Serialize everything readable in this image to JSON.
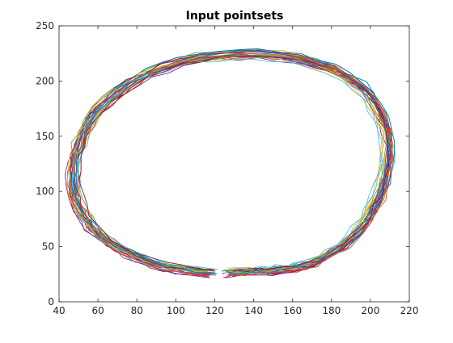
{
  "chart_data": {
    "type": "line",
    "title": "Input pointsets",
    "xlabel": "",
    "ylabel": "",
    "xlim": [
      40,
      220
    ],
    "ylim": [
      0,
      250
    ],
    "x_ticks": [
      "40",
      "60",
      "80",
      "100",
      "120",
      "140",
      "160",
      "180",
      "200",
      "220"
    ],
    "y_ticks": [
      "0",
      "50",
      "100",
      "150",
      "200",
      "250"
    ],
    "grid": false,
    "legend": "none",
    "note_series_unlabeled": true,
    "colors": [
      "#0072BD",
      "#D95319",
      "#EDB120",
      "#7E2F8E",
      "#77AC30",
      "#4DBEEE",
      "#A2142F"
    ],
    "base_curve": {
      "x": [
        118,
        110,
        102,
        95,
        88,
        82,
        76,
        70,
        65,
        60,
        56,
        53,
        50,
        48,
        47,
        47,
        48,
        50,
        52,
        55,
        59,
        64,
        70,
        77,
        85,
        93,
        102,
        112,
        122,
        132,
        142,
        152,
        162,
        171,
        180,
        187,
        194,
        199,
        203,
        206,
        208,
        209,
        209,
        208,
        206,
        204,
        201,
        198,
        194,
        190,
        185,
        180,
        175,
        170,
        165,
        160,
        155,
        150,
        145,
        140,
        135,
        130,
        126
      ],
      "y": [
        27,
        28,
        30,
        32,
        35,
        39,
        44,
        49,
        55,
        62,
        69,
        77,
        86,
        96,
        107,
        118,
        130,
        141,
        152,
        162,
        172,
        181,
        190,
        198,
        206,
        212,
        217,
        221,
        223,
        224,
        224,
        223,
        220,
        216,
        211,
        204,
        196,
        187,
        177,
        166,
        154,
        142,
        130,
        118,
        106,
        95,
        85,
        75,
        66,
        58,
        51,
        45,
        40,
        36,
        33,
        31,
        30,
        29,
        28,
        28,
        27,
        27,
        27
      ]
    },
    "series_count": 30
  }
}
